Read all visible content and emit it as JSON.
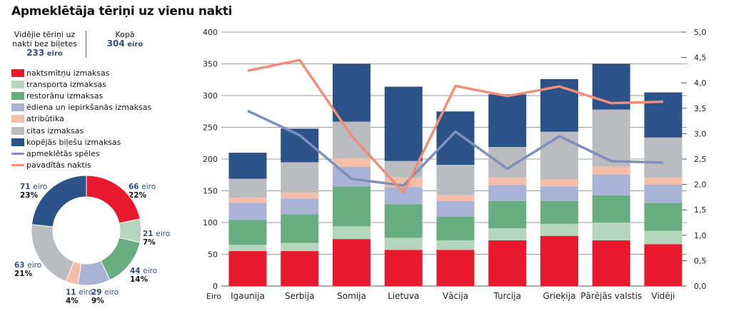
{
  "title": "Apmeklētāja tēriņi uz vienu nakti",
  "summary": {
    "avg_label_1": "Vidējie tēriņi uz",
    "avg_label_2": "nakti bez biļetes",
    "avg_value": "233",
    "avg_unit": "eiro",
    "total_label": "Kopā",
    "total_value": "304",
    "total_unit": "eiro"
  },
  "legend": [
    {
      "label": "naktsmītņu izmaksas",
      "color": "#e8192c",
      "kind": "box"
    },
    {
      "label": "transporta izmaksas",
      "color": "#b3d6bd",
      "kind": "box"
    },
    {
      "label": "restorānu izmaksas",
      "color": "#67ad7f",
      "kind": "box"
    },
    {
      "label": "ēdiena un iepirkšanās izmaksas",
      "color": "#a9b3d5",
      "kind": "box"
    },
    {
      "label": "atribūtika",
      "color": "#f6bda9",
      "kind": "box"
    },
    {
      "label": "citas izmaksas",
      "color": "#bbbcc0",
      "kind": "box"
    },
    {
      "label": "kopējās biļešu izmaksas",
      "color": "#2b5289",
      "kind": "box"
    },
    {
      "label": "apmeklētās spēles",
      "color": "#7d8fbc",
      "kind": "line"
    },
    {
      "label": "pavadītās naktis",
      "color": "#ef8f77",
      "kind": "line"
    }
  ],
  "chart_data": [
    {
      "type": "pie",
      "style": "donut",
      "slices": [
        {
          "value": 66,
          "value_label": "66",
          "unit": "eiro",
          "percent": "22%",
          "color": "#e8192c"
        },
        {
          "value": 21,
          "value_label": "21",
          "unit": "eiro",
          "percent": "7%",
          "color": "#b3d6bd"
        },
        {
          "value": 44,
          "value_label": "44",
          "unit": "eiro",
          "percent": "14%",
          "color": "#67ad7f"
        },
        {
          "value": 29,
          "value_label": "29",
          "unit": "eiro",
          "percent": "9%",
          "color": "#a9b3d5"
        },
        {
          "value": 11,
          "value_label": "11",
          "unit": "eiro",
          "percent": "4%",
          "color": "#f6bda9"
        },
        {
          "value": 63,
          "value_label": "63",
          "unit": "eiro",
          "percent": "21%",
          "color": "#bbbcc0"
        },
        {
          "value": 71,
          "value_label": "71",
          "unit": "eiro",
          "percent": "23%",
          "color": "#2b5289"
        }
      ]
    },
    {
      "type": "bar",
      "stacked": true,
      "categories": [
        "Igaunija",
        "Serbija",
        "Somija",
        "Lietuva",
        "Vācija",
        "Turcija",
        "Grieķija",
        "Pārējās valstis",
        "Vidēji"
      ],
      "xlabel": "Eiro",
      "ylim": [
        0,
        400
      ],
      "yticks": [
        "0",
        "50",
        "100",
        "150",
        "200",
        "250",
        "300",
        "350",
        "400"
      ],
      "y2lim": [
        0,
        5
      ],
      "y2ticks": [
        "0,0",
        "0,5",
        "1,0",
        "1,5",
        "2,0",
        "2,5",
        "3,0",
        "3,5",
        "4,0",
        "4,5",
        "5,0"
      ],
      "grid": true,
      "series": [
        {
          "name": "naktsmītņu izmaksas",
          "color": "#e8192c",
          "values": [
            55,
            55,
            74,
            57,
            57,
            72,
            79,
            72,
            66
          ]
        },
        {
          "name": "transporta izmaksas",
          "color": "#b3d6bd",
          "values": [
            10,
            13,
            20,
            19,
            15,
            19,
            19,
            28,
            21
          ]
        },
        {
          "name": "restorānu izmaksas",
          "color": "#67ad7f",
          "values": [
            39,
            45,
            63,
            53,
            37,
            43,
            36,
            43,
            44
          ]
        },
        {
          "name": "ēdiena un iepirkšanās izmaksas",
          "color": "#a9b3d5",
          "values": [
            27,
            25,
            31,
            27,
            25,
            25,
            23,
            33,
            29
          ]
        },
        {
          "name": "atribūtika",
          "color": "#f6bda9",
          "values": [
            8,
            9,
            13,
            15,
            9,
            12,
            11,
            12,
            11
          ]
        },
        {
          "name": "citas izmaksas",
          "color": "#bbbcc0",
          "values": [
            30,
            48,
            58,
            26,
            48,
            48,
            75,
            90,
            63
          ]
        },
        {
          "name": "kopējās biļešu izmaksas",
          "color": "#2b5289",
          "values": [
            41,
            53,
            91,
            117,
            84,
            83,
            83,
            72,
            71
          ]
        }
      ],
      "lines": [
        {
          "name": "apmeklētās spēles",
          "color": "#7d8fbc",
          "axis": "right",
          "values": [
            3.45,
            2.97,
            2.11,
            1.98,
            3.04,
            2.31,
            2.95,
            2.46,
            2.43
          ]
        },
        {
          "name": "pavadītās naktis",
          "color": "#ef8f77",
          "axis": "right",
          "values": [
            4.24,
            4.45,
            2.96,
            1.84,
            3.94,
            3.74,
            3.93,
            3.6,
            3.63
          ]
        }
      ]
    }
  ]
}
